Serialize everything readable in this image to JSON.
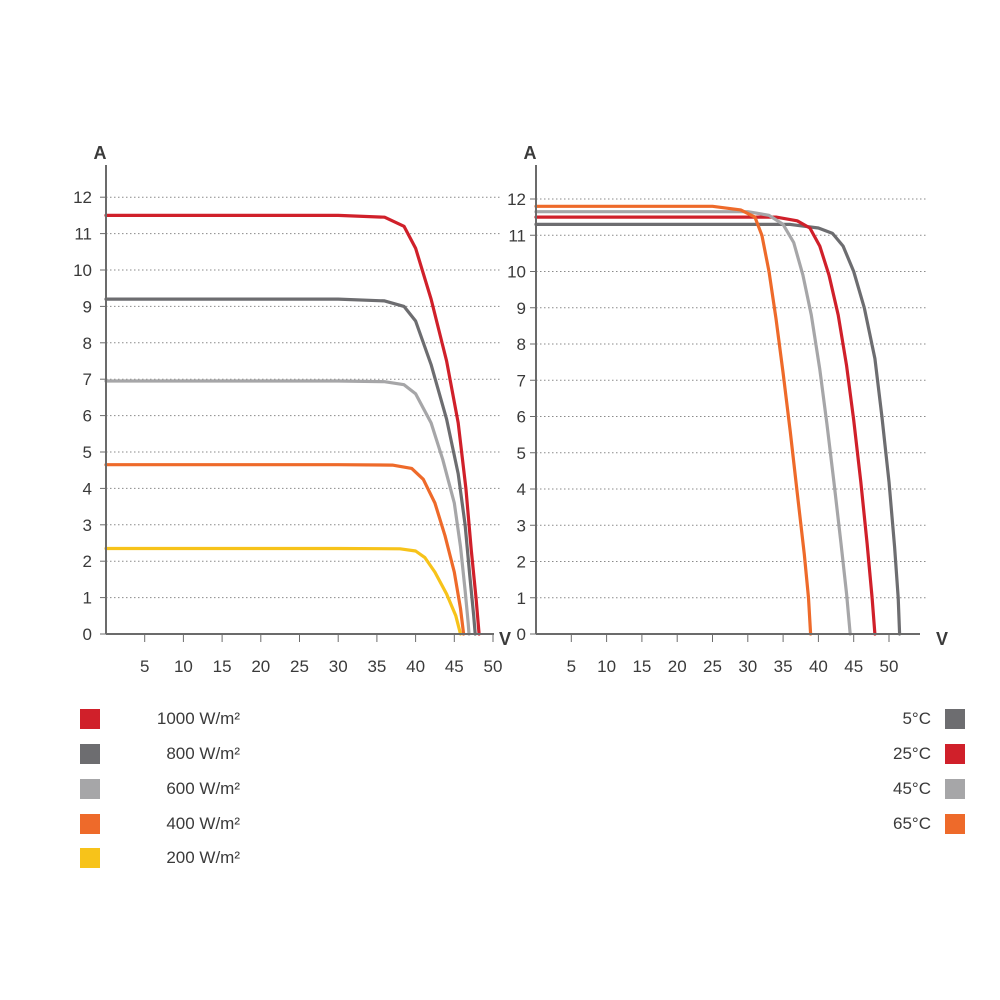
{
  "chart_data": [
    {
      "type": "line",
      "title": "",
      "ylabel": "A",
      "xlabel": "V",
      "xlim": [
        0,
        50
      ],
      "ylim": [
        0,
        12.5
      ],
      "x_ticks": [
        "5",
        "10",
        "15",
        "20",
        "25",
        "30",
        "35",
        "40",
        "45",
        "50"
      ],
      "y_ticks": [
        "0",
        "1",
        "2",
        "3",
        "4",
        "5",
        "6",
        "7",
        "8",
        "9",
        "10",
        "11",
        "12"
      ],
      "grid": "horizontal dotted",
      "series": [
        {
          "name": "1000 W/m²",
          "color": "#d0202a",
          "points": [
            [
              0,
              11.5
            ],
            [
              30,
              11.5
            ],
            [
              36,
              11.45
            ],
            [
              38.5,
              11.2
            ],
            [
              40,
              10.6
            ],
            [
              42,
              9.2
            ],
            [
              44,
              7.5
            ],
            [
              45.5,
              5.8
            ],
            [
              46.5,
              4.0
            ],
            [
              47.2,
              2.3
            ],
            [
              47.8,
              1.0
            ],
            [
              48.2,
              0
            ]
          ]
        },
        {
          "name": "800 W/m²",
          "color": "#6d6d70",
          "points": [
            [
              0,
              9.2
            ],
            [
              30,
              9.2
            ],
            [
              36,
              9.15
            ],
            [
              38.5,
              9.0
            ],
            [
              40,
              8.6
            ],
            [
              42,
              7.4
            ],
            [
              44,
              5.9
            ],
            [
              45.5,
              4.4
            ],
            [
              46.4,
              3.0
            ],
            [
              47.0,
              1.6
            ],
            [
              47.5,
              0.5
            ],
            [
              47.7,
              0
            ]
          ]
        },
        {
          "name": "600 W/m²",
          "color": "#a6a6a8",
          "points": [
            [
              0,
              6.95
            ],
            [
              30,
              6.95
            ],
            [
              36,
              6.93
            ],
            [
              38.5,
              6.85
            ],
            [
              40,
              6.6
            ],
            [
              42,
              5.8
            ],
            [
              43.5,
              4.8
            ],
            [
              45,
              3.6
            ],
            [
              45.8,
              2.4
            ],
            [
              46.4,
              1.2
            ],
            [
              46.8,
              0.3
            ],
            [
              46.9,
              0
            ]
          ]
        },
        {
          "name": "400 W/m²",
          "color": "#ee6a2a",
          "points": [
            [
              0,
              4.65
            ],
            [
              30,
              4.65
            ],
            [
              37,
              4.64
            ],
            [
              39.5,
              4.55
            ],
            [
              41,
              4.25
            ],
            [
              42.5,
              3.6
            ],
            [
              43.8,
              2.7
            ],
            [
              45,
              1.7
            ],
            [
              45.8,
              0.7
            ],
            [
              46.2,
              0
            ]
          ]
        },
        {
          "name": "200 W/m²",
          "color": "#f7c31a",
          "points": [
            [
              0,
              2.35
            ],
            [
              30,
              2.35
            ],
            [
              38,
              2.34
            ],
            [
              40,
              2.28
            ],
            [
              41.2,
              2.1
            ],
            [
              42.5,
              1.7
            ],
            [
              44,
              1.1
            ],
            [
              45.2,
              0.5
            ],
            [
              45.8,
              0
            ]
          ]
        }
      ]
    },
    {
      "type": "line",
      "title": "",
      "ylabel": "A",
      "xlabel": "V",
      "xlim": [
        0,
        55
      ],
      "ylim": [
        0,
        12.5
      ],
      "x_ticks": [
        "5",
        "10",
        "15",
        "20",
        "25",
        "30",
        "35",
        "40",
        "45",
        "50"
      ],
      "y_ticks": [
        "0",
        "1",
        "2",
        "3",
        "4",
        "5",
        "6",
        "7",
        "8",
        "9",
        "10",
        "11",
        "12"
      ],
      "grid": "horizontal dotted",
      "series": [
        {
          "name": "5°C",
          "color": "#6d6d70",
          "points": [
            [
              0,
              11.3
            ],
            [
              36,
              11.3
            ],
            [
              40,
              11.2
            ],
            [
              42,
              11.05
            ],
            [
              43.5,
              10.7
            ],
            [
              45,
              10.0
            ],
            [
              46.5,
              9.0
            ],
            [
              48,
              7.6
            ],
            [
              49,
              6.0
            ],
            [
              50,
              4.2
            ],
            [
              50.8,
              2.4
            ],
            [
              51.3,
              1.0
            ],
            [
              51.5,
              0
            ]
          ]
        },
        {
          "name": "25°C",
          "color": "#d0202a",
          "points": [
            [
              0,
              11.5
            ],
            [
              34,
              11.5
            ],
            [
              37,
              11.4
            ],
            [
              38.8,
              11.2
            ],
            [
              40.2,
              10.7
            ],
            [
              41.5,
              9.9
            ],
            [
              42.8,
              8.8
            ],
            [
              44,
              7.4
            ],
            [
              45,
              5.9
            ],
            [
              46,
              4.2
            ],
            [
              46.9,
              2.5
            ],
            [
              47.6,
              1.0
            ],
            [
              48,
              0
            ]
          ]
        },
        {
          "name": "45°C",
          "color": "#a6a6a8",
          "points": [
            [
              0,
              11.65
            ],
            [
              30,
              11.65
            ],
            [
              33,
              11.55
            ],
            [
              35,
              11.3
            ],
            [
              36.5,
              10.8
            ],
            [
              37.8,
              9.9
            ],
            [
              39,
              8.8
            ],
            [
              40.2,
              7.3
            ],
            [
              41.2,
              5.8
            ],
            [
              42.2,
              4.2
            ],
            [
              43.2,
              2.5
            ],
            [
              44,
              1.1
            ],
            [
              44.5,
              0
            ]
          ]
        },
        {
          "name": "65°C",
          "color": "#ee6a2a",
          "points": [
            [
              0,
              11.8
            ],
            [
              25,
              11.8
            ],
            [
              29,
              11.7
            ],
            [
              31,
              11.5
            ],
            [
              32,
              11.0
            ],
            [
              33,
              10.0
            ],
            [
              34,
              8.7
            ],
            [
              35,
              7.2
            ],
            [
              36,
              5.6
            ],
            [
              37,
              3.9
            ],
            [
              38,
              2.2
            ],
            [
              38.6,
              1.0
            ],
            [
              38.9,
              0
            ]
          ]
        }
      ]
    }
  ],
  "legend_left": [
    {
      "label": "1000 W/m²",
      "color": "#d0202a"
    },
    {
      "label": "800 W/m²",
      "color": "#6d6d70"
    },
    {
      "label": "600 W/m²",
      "color": "#a6a6a8"
    },
    {
      "label": "400 W/m²",
      "color": "#ee6a2a"
    },
    {
      "label": "200 W/m²",
      "color": "#f7c31a"
    }
  ],
  "legend_right": [
    {
      "label": "5°C",
      "color": "#6d6d70"
    },
    {
      "label": "25°C",
      "color": "#d0202a"
    },
    {
      "label": "45°C",
      "color": "#a6a6a8"
    },
    {
      "label": "65°C",
      "color": "#ee6a2a"
    }
  ]
}
